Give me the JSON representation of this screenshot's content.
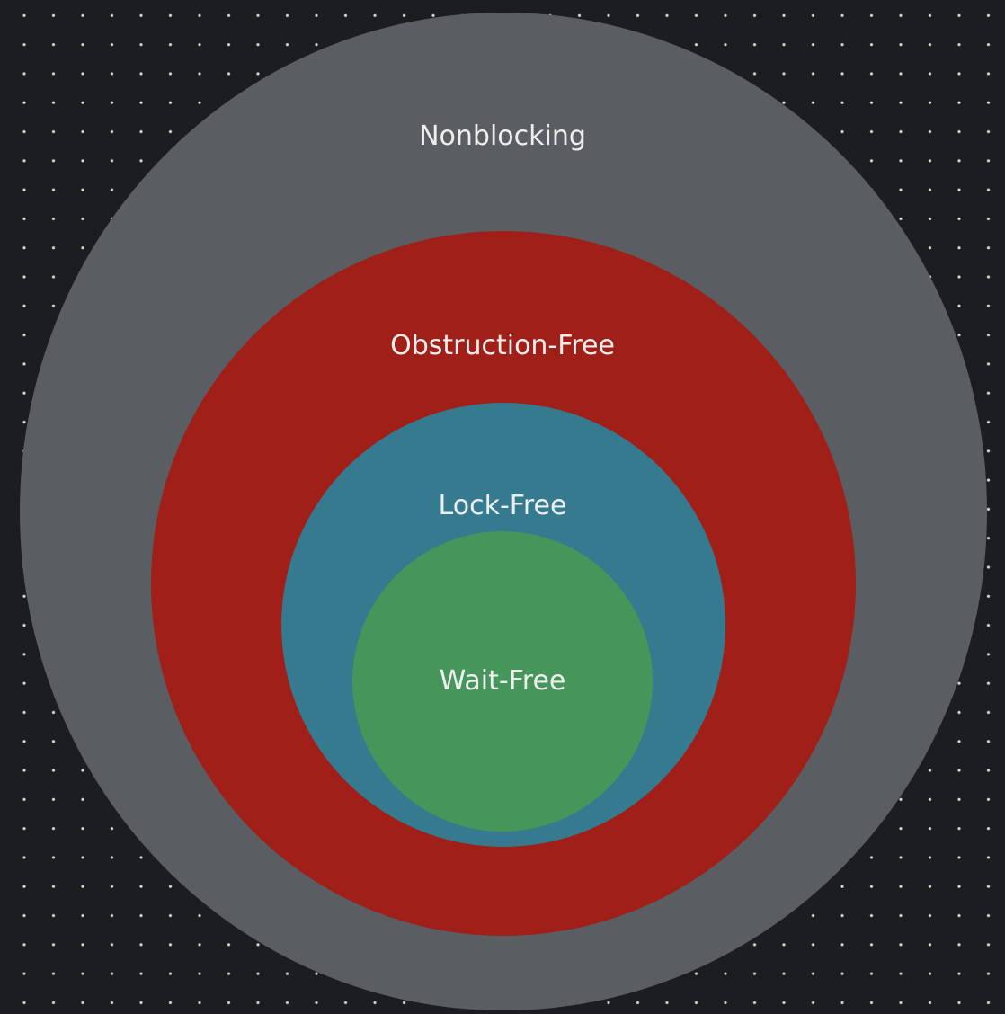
{
  "rings": [
    {
      "label": "Nonblocking",
      "color": "#5a5e62"
    },
    {
      "label": "Obstruction-Free",
      "color": "#a01f18"
    },
    {
      "label": "Lock-Free",
      "color": "#357a8f"
    },
    {
      "label": "Wait-Free",
      "color": "#46955a"
    }
  ],
  "background": {
    "color": "#1c1d20",
    "dot_color": "#d9d9d9"
  }
}
